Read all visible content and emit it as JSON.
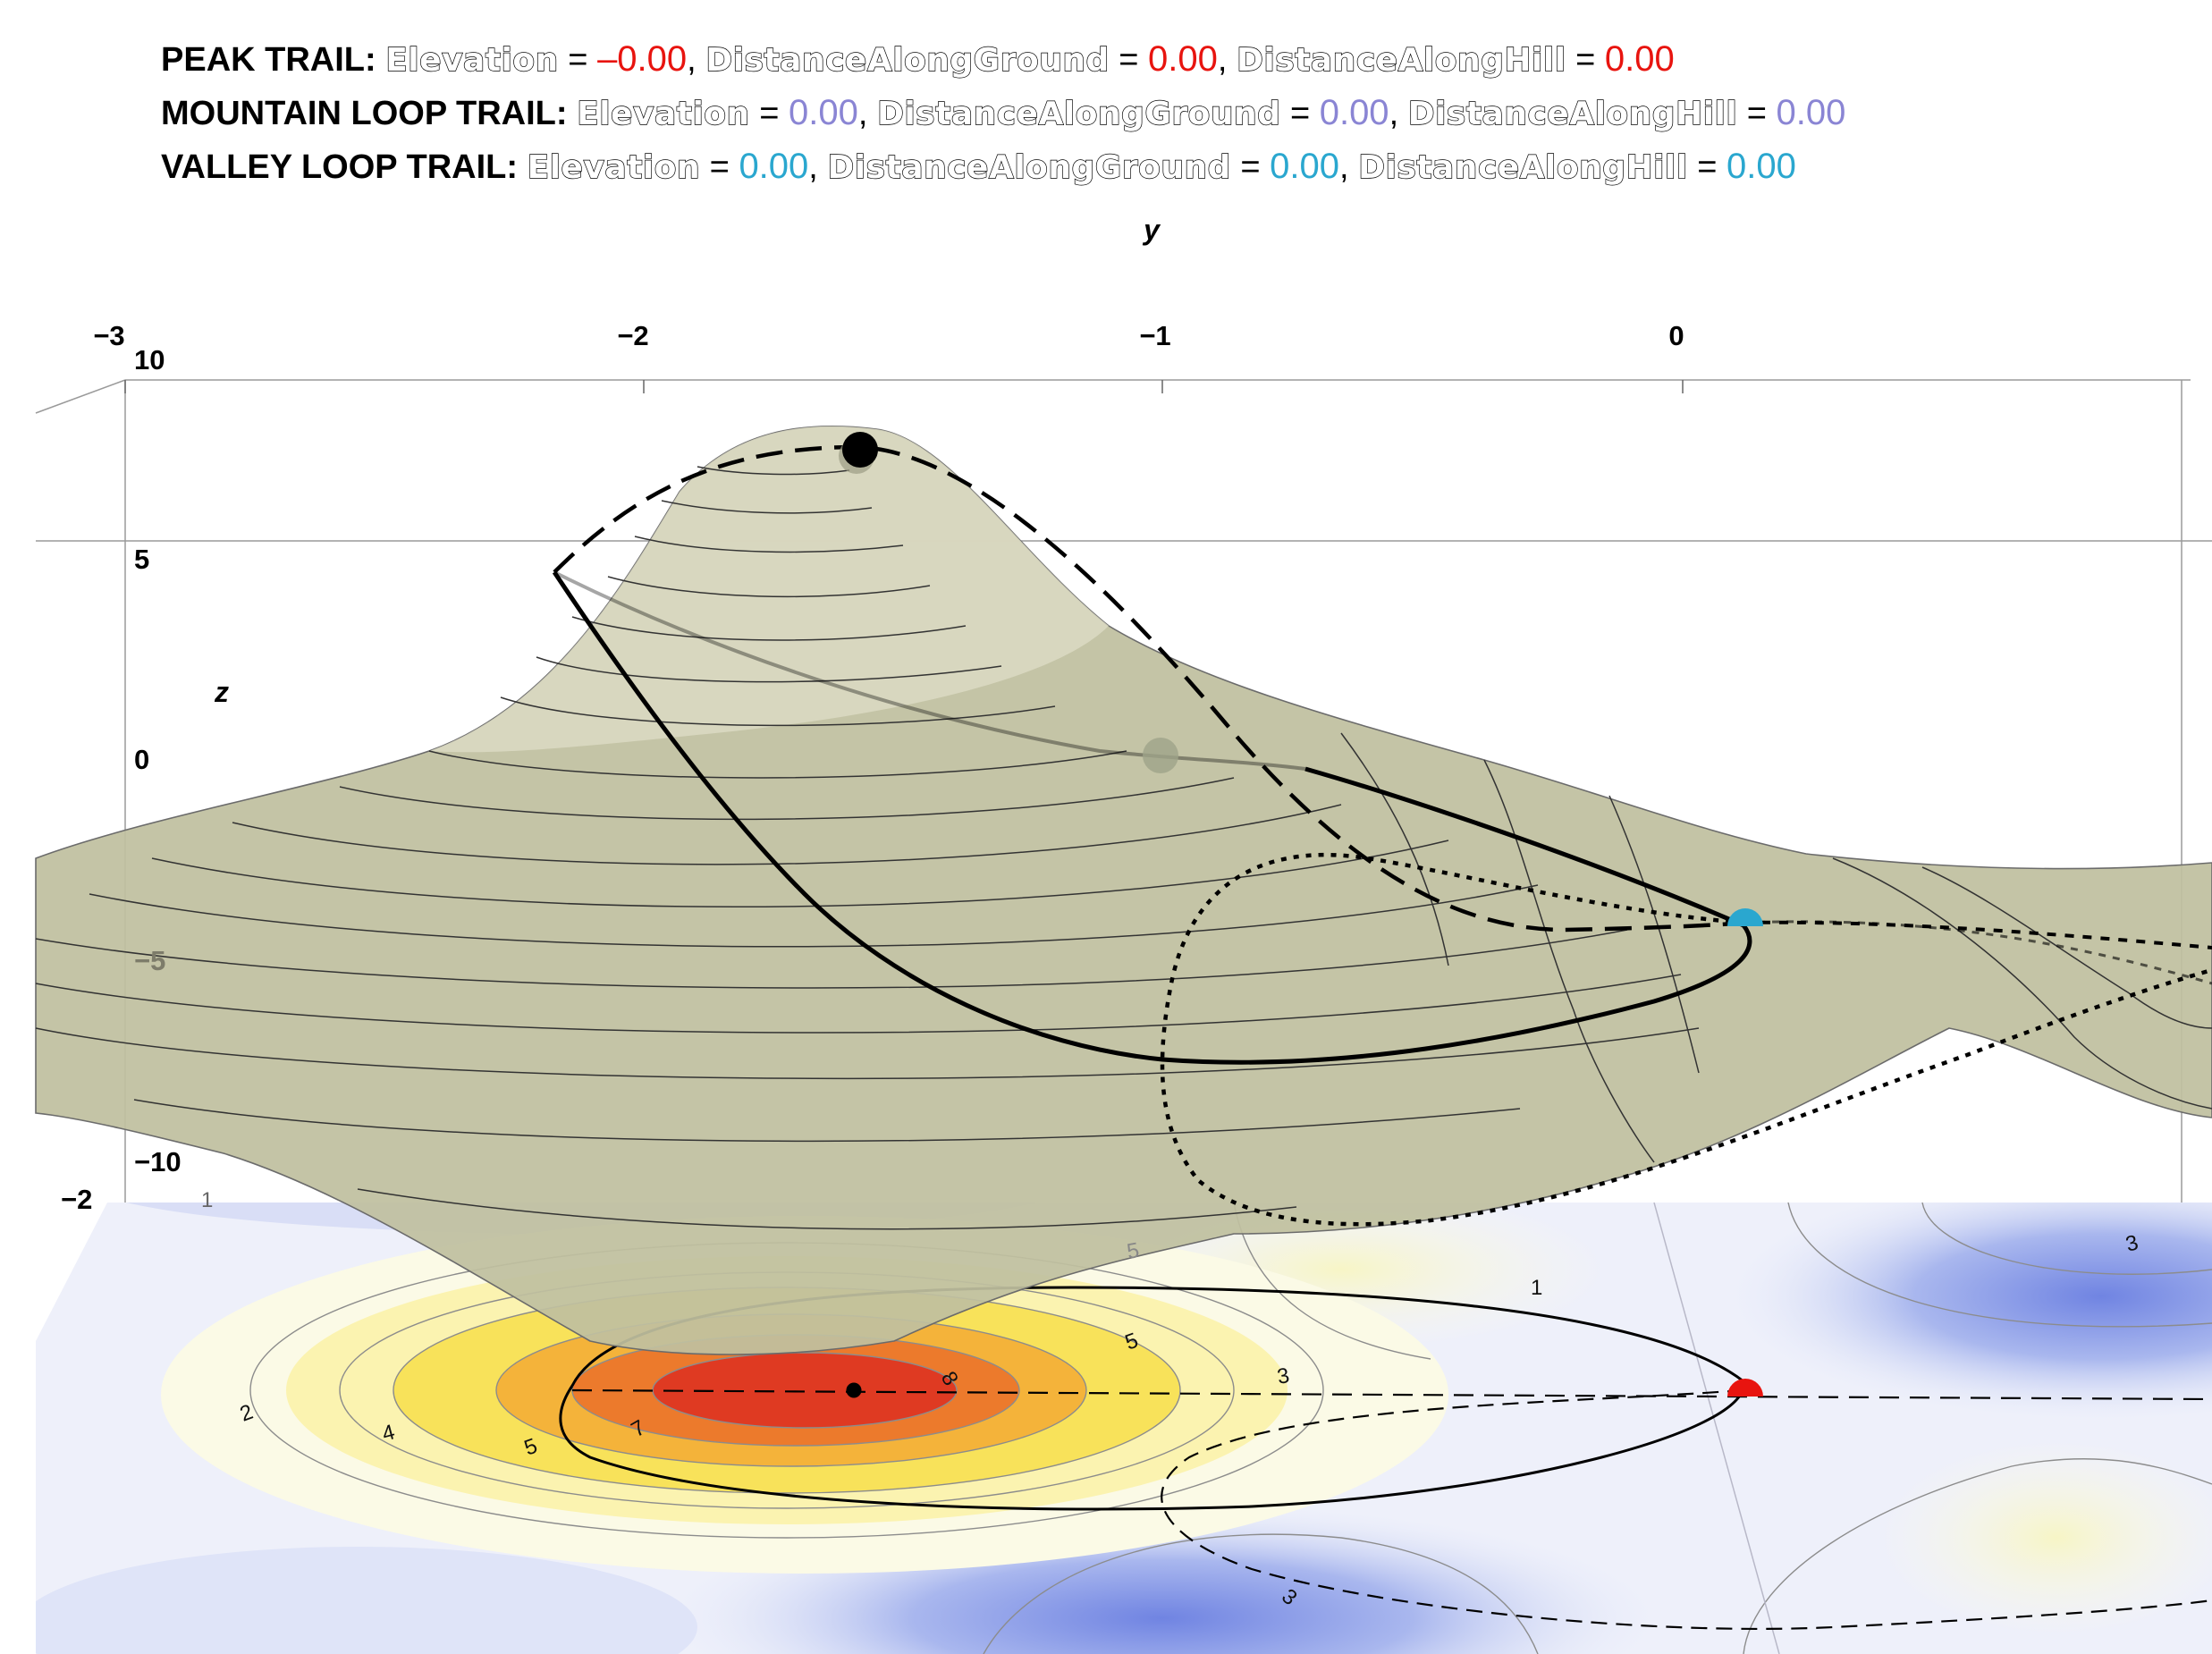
{
  "legend": {
    "peak": {
      "name": "PEAK TRAIL:",
      "elevation_label": "Elevation",
      "elevation_value": "–0.00",
      "ground_label": "DistanceAlongGround",
      "ground_value": "0.00",
      "hill_label": "DistanceAlongHill",
      "hill_value": "0.00",
      "color": "#e8140f"
    },
    "mountain": {
      "name": "MOUNTAIN LOOP TRAIL:",
      "elevation_label": "Elevation",
      "elevation_value": "0.00",
      "ground_label": "DistanceAlongGround",
      "ground_value": "0.00",
      "hill_label": "DistanceAlongHill",
      "hill_value": "0.00",
      "color": "#8a85d4"
    },
    "valley": {
      "name": "VALLEY LOOP TRAIL:",
      "elevation_label": "Elevation",
      "elevation_value": "0.00",
      "ground_label": "DistanceAlongGround",
      "ground_value": "0.00",
      "hill_label": "DistanceAlongHill",
      "hill_value": "0.00",
      "color": "#2aa7cf"
    }
  },
  "axes": {
    "y_name": "y",
    "y_ticks": [
      "−3",
      "−2",
      "−1",
      "0"
    ],
    "z_name": "z",
    "z_ticks": [
      "10",
      "5",
      "0",
      "−5",
      "−10"
    ],
    "x_tick": "−2"
  },
  "contour_labels": [
    "2",
    "4",
    "5",
    "7",
    "8",
    "5",
    "3",
    "1",
    "3",
    "3",
    "5",
    "1"
  ],
  "colors": {
    "surface": "#c4c5a4",
    "peak_marker": "#000000",
    "valley_marker": "#2aa7cf",
    "trail_marker": "#e8140f",
    "map_hot": "#e23a22",
    "map_cold": "#7f93e6"
  }
}
